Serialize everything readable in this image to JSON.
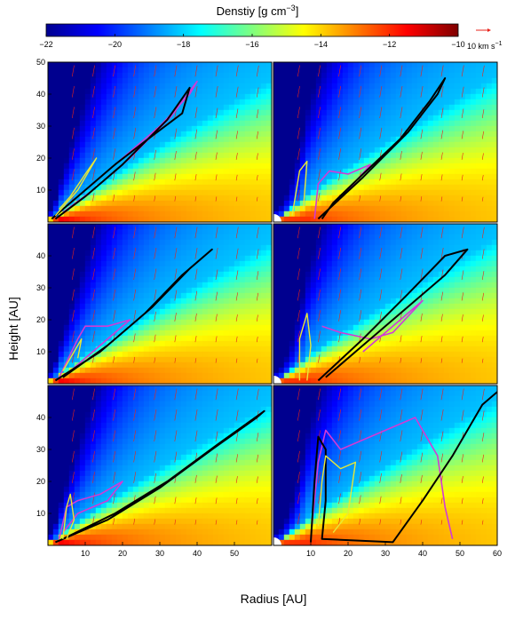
{
  "colorbar": {
    "title": "Denstiy [g cm",
    "title_sup": "−3",
    "title_close": "]",
    "ticks": [
      -22,
      -20,
      -18,
      -16,
      -14,
      -12,
      -10
    ],
    "tick_labels": [
      "−22",
      "−20",
      "−18",
      "−16",
      "−14",
      "−12",
      "−10"
    ],
    "range": [
      -22,
      -10
    ],
    "colormap": [
      "#00008f",
      "#0000ff",
      "#007fff",
      "#00ffff",
      "#7fff7f",
      "#ffff00",
      "#ff7f00",
      "#ff0000",
      "#7f0000"
    ]
  },
  "vector_key": {
    "label": "10 km s",
    "label_sup": "−1",
    "color": "#e8231b"
  },
  "chart_data": {
    "type": "heatmap",
    "layout": "3 rows x 2 columns",
    "xlabel": "Radius [AU]",
    "ylabel": "Height [AU]",
    "x_ticks_left": [
      10,
      20,
      30,
      40,
      50
    ],
    "x_ticks_right": [
      10,
      20,
      30,
      40,
      50,
      60
    ],
    "y_ticks_top_row": [
      10,
      20,
      30,
      40,
      50
    ],
    "y_ticks_other_rows": [
      10,
      20,
      30,
      40
    ],
    "xlim_left": [
      0,
      60
    ],
    "xlim_right": [
      0,
      60
    ],
    "ylim": [
      0,
      50
    ],
    "contour_colors": {
      "black": "#000000",
      "magenta": "#d23ad6",
      "yellow": "#e8e836"
    },
    "panels": [
      {
        "row": 1,
        "col": 1,
        "black": [
          [
            1,
            1
          ],
          [
            8,
            8
          ],
          [
            18,
            18
          ],
          [
            28,
            27
          ],
          [
            36,
            34
          ],
          [
            38,
            42
          ],
          [
            32,
            32
          ],
          [
            20,
            18
          ],
          [
            10,
            8
          ],
          [
            2,
            1
          ]
        ],
        "magenta": [
          [
            2,
            2
          ],
          [
            10,
            10
          ],
          [
            20,
            20
          ],
          [
            30,
            30
          ],
          [
            38,
            40
          ],
          [
            40,
            44
          ],
          [
            33,
            33
          ],
          [
            22,
            20
          ],
          [
            12,
            10
          ],
          [
            4,
            3
          ]
        ],
        "yellow": [
          [
            2,
            2
          ],
          [
            8,
            10
          ],
          [
            11,
            16
          ],
          [
            13,
            20
          ],
          [
            10,
            15
          ],
          [
            6,
            8
          ],
          [
            3,
            4
          ]
        ]
      },
      {
        "row": 1,
        "col": 2,
        "black": [
          [
            12,
            1
          ],
          [
            24,
            14
          ],
          [
            36,
            28
          ],
          [
            44,
            40
          ],
          [
            46,
            45
          ],
          [
            42,
            38
          ],
          [
            34,
            26
          ],
          [
            24,
            15
          ],
          [
            16,
            6
          ],
          [
            13,
            1
          ]
        ],
        "magenta": [
          [
            11,
            1
          ],
          [
            12,
            12
          ],
          [
            15,
            16
          ],
          [
            20,
            15
          ],
          [
            26,
            18
          ],
          [
            20,
            10
          ],
          [
            13,
            2
          ]
        ],
        "yellow": [
          [
            5,
            2
          ],
          [
            7,
            16
          ],
          [
            9,
            19
          ],
          [
            8,
            4
          ]
        ]
      },
      {
        "row": 2,
        "col": 1,
        "black": [
          [
            2,
            1
          ],
          [
            14,
            10
          ],
          [
            26,
            22
          ],
          [
            36,
            34
          ],
          [
            40,
            38
          ],
          [
            44,
            42
          ],
          [
            38,
            36
          ],
          [
            28,
            24
          ],
          [
            16,
            12
          ],
          [
            4,
            2
          ]
        ],
        "magenta": [
          [
            3,
            2
          ],
          [
            8,
            14
          ],
          [
            10,
            18
          ],
          [
            16,
            18
          ],
          [
            22,
            20
          ],
          [
            16,
            14
          ],
          [
            6,
            4
          ]
        ],
        "yellow": [
          [
            4,
            4
          ],
          [
            7,
            10
          ],
          [
            9,
            14
          ],
          [
            8,
            8
          ]
        ]
      },
      {
        "row": 2,
        "col": 2,
        "black": [
          [
            12,
            1
          ],
          [
            24,
            14
          ],
          [
            36,
            28
          ],
          [
            46,
            40
          ],
          [
            52,
            42
          ],
          [
            46,
            34
          ],
          [
            36,
            24
          ],
          [
            24,
            12
          ],
          [
            14,
            2
          ]
        ],
        "magenta": [
          [
            13,
            18
          ],
          [
            18,
            16
          ],
          [
            26,
            14
          ],
          [
            32,
            16
          ],
          [
            40,
            26
          ],
          [
            34,
            20
          ],
          [
            24,
            10
          ]
        ],
        "yellow": [
          [
            7,
            1
          ],
          [
            7,
            14
          ],
          [
            9,
            22
          ],
          [
            10,
            12
          ],
          [
            9,
            1
          ]
        ]
      },
      {
        "row": 3,
        "col": 1,
        "black": [
          [
            2,
            1
          ],
          [
            16,
            8
          ],
          [
            30,
            18
          ],
          [
            44,
            30
          ],
          [
            56,
            40
          ],
          [
            58,
            42
          ],
          [
            46,
            32
          ],
          [
            32,
            20
          ],
          [
            18,
            10
          ],
          [
            4,
            2
          ]
        ],
        "magenta": [
          [
            3,
            2
          ],
          [
            5,
            12
          ],
          [
            8,
            14
          ],
          [
            14,
            16
          ],
          [
            20,
            20
          ],
          [
            16,
            14
          ],
          [
            8,
            10
          ],
          [
            4,
            4
          ]
        ],
        "yellow": [
          [
            4,
            2
          ],
          [
            5,
            12
          ],
          [
            6,
            16
          ],
          [
            7,
            8
          ],
          [
            5,
            2
          ]
        ]
      },
      {
        "row": 3,
        "col": 2,
        "black": [
          [
            10,
            1
          ],
          [
            11,
            20
          ],
          [
            12,
            34
          ],
          [
            14,
            30
          ],
          [
            14,
            14
          ],
          [
            13,
            2
          ],
          [
            32,
            1
          ],
          [
            40,
            14
          ],
          [
            48,
            28
          ],
          [
            56,
            44
          ],
          [
            60,
            48
          ]
        ],
        "magenta": [
          [
            10,
            2
          ],
          [
            12,
            26
          ],
          [
            14,
            36
          ],
          [
            18,
            30
          ],
          [
            26,
            34
          ],
          [
            38,
            40
          ],
          [
            44,
            28
          ],
          [
            46,
            12
          ],
          [
            48,
            2
          ]
        ],
        "yellow": [
          [
            12,
            6
          ],
          [
            13,
            20
          ],
          [
            14,
            28
          ],
          [
            18,
            24
          ],
          [
            22,
            26
          ],
          [
            20,
            10
          ],
          [
            16,
            4
          ]
        ]
      }
    ]
  }
}
